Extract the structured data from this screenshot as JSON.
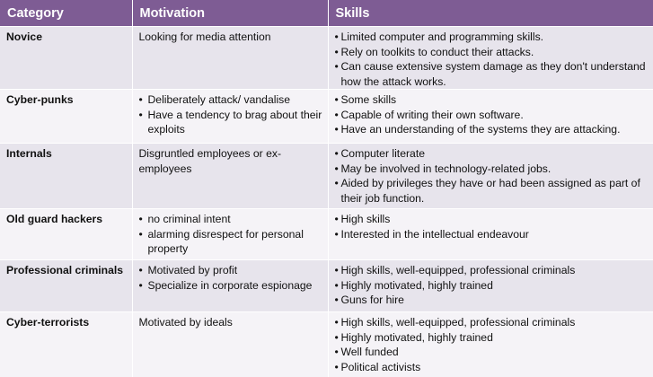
{
  "headers": {
    "category": "Category",
    "motivation": "Motivation",
    "skills": "Skills"
  },
  "rows": [
    {
      "category": "Novice",
      "motivation_text": "Looking for media attention",
      "motivation_bullets": [],
      "skills": [
        "Limited computer and programming skills.",
        "Rely on toolkits to conduct their attacks.",
        "Can cause extensive system damage as they don't understand how the attack works."
      ]
    },
    {
      "category": "Cyber-punks",
      "motivation_text": "",
      "motivation_bullets": [
        "Deliberately attack/ vandalise",
        "Have a tendency to brag about their exploits"
      ],
      "skills": [
        "Some skills",
        "Capable of writing their own software.",
        "Have an understanding of the systems they are attacking."
      ]
    },
    {
      "category": "Internals",
      "motivation_text": "Disgruntled employees or ex-employees",
      "motivation_bullets": [],
      "skills": [
        "Computer literate",
        "May be involved in technology-related jobs.",
        "Aided by privileges they have or had been assigned as part of their job function."
      ]
    },
    {
      "category": "Old guard hackers",
      "motivation_text": "",
      "motivation_bullets": [
        "no criminal intent",
        "alarming disrespect for personal property"
      ],
      "skills": [
        "High skills",
        "Interested in the intellectual endeavour"
      ]
    },
    {
      "category": "Professional criminals",
      "motivation_text": "",
      "motivation_bullets": [
        "Motivated by profit",
        "Specialize in corporate espionage"
      ],
      "skills": [
        "High skills, well-equipped, professional criminals",
        "Highly motivated, highly trained",
        "Guns for hire"
      ]
    },
    {
      "category": "Cyber-terrorists",
      "motivation_text": "Motivated by ideals",
      "motivation_bullets": [],
      "skills": [
        "High skills, well-equipped, professional criminals",
        "Highly motivated, highly trained",
        "Well funded",
        "Political activists"
      ]
    }
  ]
}
